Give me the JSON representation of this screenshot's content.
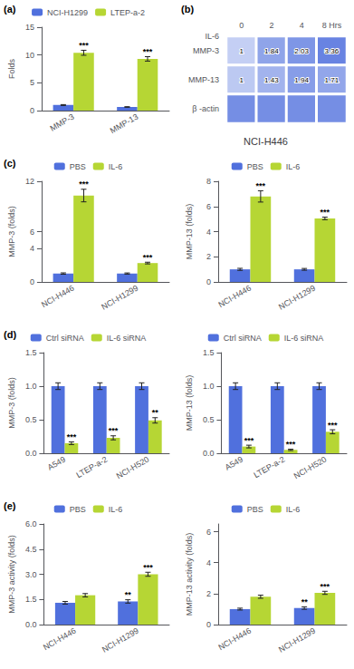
{
  "chart_data": [
    {
      "type": "bar",
      "annotations": [
        {
          "text": "(a)"
        }
      ],
      "ylabel": "Folds",
      "categories": [
        "MMP-3",
        "MMP-13"
      ],
      "series": [
        {
          "name": "NCI-H1299",
          "values": [
            1.0,
            0.65
          ],
          "errors": [
            0.08,
            0.05
          ]
        },
        {
          "name": "LTEP-a-2",
          "values": [
            10.4,
            9.3
          ],
          "errors": [
            0.45,
            0.4
          ],
          "sig": [
            "***",
            "***"
          ]
        }
      ],
      "ylim": [
        0,
        15
      ],
      "yticks": [
        0,
        5,
        10,
        15
      ],
      "legend": "top",
      "grid": false
    },
    {
      "type": "heatmap",
      "annotations": [
        {
          "text": "(b)"
        }
      ],
      "title": "NCI-H446",
      "xlabel": "IL-6",
      "categories": [
        "0",
        "2",
        "4",
        "8 Hrs"
      ],
      "rows": [
        "MMP-3",
        "MMP-13",
        "β -actin"
      ],
      "cells": [
        [
          0.12,
          0.52,
          0.65,
          0.82
        ],
        [
          0.18,
          0.38,
          0.58,
          0.5
        ],
        [
          0.72,
          0.72,
          0.72,
          0.72
        ]
      ],
      "ratios": [
        [
          1,
          1.84,
          2.03,
          3.36
        ],
        [
          1,
          1.43,
          1.94,
          1.71
        ],
        [
          null,
          null,
          null,
          null
        ]
      ],
      "color_range": [
        0,
        1
      ]
    },
    {
      "type": "bar",
      "annotations": [
        {
          "text": "(c)"
        }
      ],
      "ylabel": "MMP-3 (folds)",
      "categories": [
        "NCI-H446",
        "NCI-H1299"
      ],
      "series": [
        {
          "name": "PBS",
          "values": [
            1.0,
            1.0
          ],
          "errors": [
            0.08,
            0.07
          ]
        },
        {
          "name": "IL-6",
          "values": [
            10.3,
            2.25
          ],
          "errors": [
            0.75,
            0.1
          ],
          "sig": [
            "***",
            "***"
          ]
        }
      ],
      "ylim": [
        0,
        12
      ],
      "yticks": [
        0,
        4,
        6,
        12
      ],
      "legend": "top",
      "grid": false
    },
    {
      "type": "bar",
      "ylabel": "MMP-13 (folds)",
      "categories": [
        "NCI-H446",
        "NCI-H1299"
      ],
      "series": [
        {
          "name": "PBS",
          "values": [
            1.0,
            1.0
          ],
          "errors": [
            0.08,
            0.07
          ]
        },
        {
          "name": "IL-6",
          "values": [
            6.8,
            5.05
          ],
          "errors": [
            0.45,
            0.1
          ],
          "sig": [
            "***",
            "***"
          ]
        }
      ],
      "ylim": [
        0,
        8
      ],
      "yticks": [
        0,
        2,
        4,
        6,
        8
      ],
      "legend": "top",
      "grid": false
    },
    {
      "type": "bar",
      "annotations": [
        {
          "text": "(d)"
        }
      ],
      "ylabel": "MMP-3 (folds)",
      "categories": [
        "A549",
        "LTEP-a-2",
        "NCI-H520"
      ],
      "series": [
        {
          "name": "Ctrl siRNA",
          "values": [
            1.0,
            1.0,
            1.0
          ],
          "errors": [
            0.05,
            0.05,
            0.05
          ]
        },
        {
          "name": "IL-6 siRNA",
          "values": [
            0.15,
            0.23,
            0.49
          ],
          "errors": [
            0.02,
            0.03,
            0.04
          ],
          "sig": [
            "***",
            "***",
            "**"
          ]
        }
      ],
      "ylim": [
        0,
        1.5
      ],
      "yticks": [
        {
          "value": 0,
          "label": "0.0"
        },
        {
          "value": 0.5,
          "label": "0.5"
        },
        {
          "value": 1.0,
          "label": "1.0"
        },
        {
          "value": 1.5,
          "label": "1.5"
        }
      ],
      "legend": "top",
      "grid": false
    },
    {
      "type": "bar",
      "ylabel": "MMP-13 (folds)",
      "categories": [
        "A549",
        "LTEP-a-2",
        "NCI-H520"
      ],
      "series": [
        {
          "name": "Ctrl siRNA",
          "values": [
            1.0,
            1.0,
            1.0
          ],
          "errors": [
            0.05,
            0.05,
            0.05
          ]
        },
        {
          "name": "IL-6 siRNA",
          "values": [
            0.1,
            0.05,
            0.32
          ],
          "errors": [
            0.02,
            0.01,
            0.03
          ],
          "sig": [
            "***",
            "***",
            "***"
          ]
        }
      ],
      "ylim": [
        0,
        1.5
      ],
      "yticks": [
        {
          "value": 0,
          "label": "0.0"
        },
        {
          "value": 0.5,
          "label": "0.5"
        },
        {
          "value": 1.0,
          "label": "1.0"
        },
        {
          "value": 1.5,
          "label": "1.5"
        }
      ],
      "legend": "top",
      "grid": false
    },
    {
      "type": "bar",
      "annotations": [
        {
          "text": "(e)"
        }
      ],
      "ylabel": "MMP-3 activity (folds)",
      "categories": [
        "NCI-H446",
        "NCI-H1299"
      ],
      "series": [
        {
          "name": "PBS",
          "values": [
            1.3,
            1.38
          ],
          "errors": [
            0.08,
            0.1
          ],
          "sig": [
            null,
            "**"
          ]
        },
        {
          "name": "IL-6",
          "values": [
            1.75,
            3.0
          ],
          "errors": [
            0.1,
            0.12
          ],
          "sig": [
            null,
            "***"
          ]
        }
      ],
      "ylim": [
        0,
        6.0
      ],
      "yticks": [
        {
          "value": 0,
          "label": "0.0"
        },
        {
          "value": 1.5,
          "label": "1.5"
        },
        {
          "value": 3.0,
          "label": "3.0"
        },
        {
          "value": 4.5,
          "label": "4.5"
        },
        {
          "value": 6.0,
          "label": "6.0"
        }
      ],
      "legend": "top",
      "grid": false
    },
    {
      "type": "bar",
      "ylabel": "MMP-13 activity (folds)",
      "categories": [
        "NCI-H446",
        "NCI-H1299"
      ],
      "series": [
        {
          "name": "PBS",
          "values": [
            1.0,
            1.07
          ],
          "errors": [
            0.06,
            0.08
          ],
          "sig": [
            null,
            "**"
          ]
        },
        {
          "name": "IL-6",
          "values": [
            1.8,
            2.05
          ],
          "errors": [
            0.1,
            0.1
          ],
          "sig": [
            null,
            "***"
          ]
        }
      ],
      "ylim": [
        0,
        6.5
      ],
      "yticks": [
        0,
        2,
        4,
        6
      ],
      "legend": "top",
      "grid": false
    }
  ]
}
